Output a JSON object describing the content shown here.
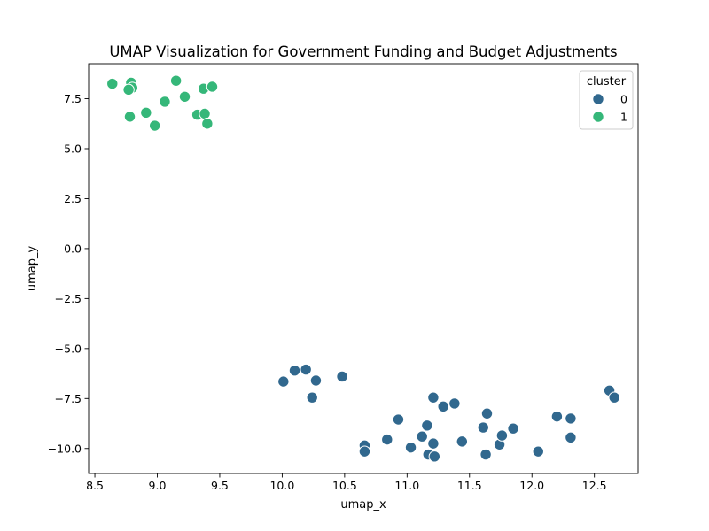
{
  "chart_data": {
    "type": "scatter",
    "title": "UMAP Visualization for Government Funding and Budget Adjustments",
    "xlabel": "umap_x",
    "ylabel": "umap_y",
    "xlim": [
      8.45,
      12.85
    ],
    "ylim": [
      -11.25,
      9.25
    ],
    "xticks": [
      8.5,
      9.0,
      9.5,
      10.0,
      10.5,
      11.0,
      11.5,
      12.0,
      12.5
    ],
    "xtick_labels": [
      "8.5",
      "9.0",
      "9.5",
      "10.0",
      "10.5",
      "11.0",
      "11.5",
      "12.0",
      "12.5"
    ],
    "yticks": [
      7.5,
      5.0,
      2.5,
      0.0,
      -2.5,
      -5.0,
      -7.5,
      -10.0
    ],
    "ytick_labels": [
      "7.5",
      "5.0",
      "2.5",
      "0.0",
      "−2.5",
      "−5.0",
      "−7.5",
      "−10.0"
    ],
    "grid": false,
    "legend": {
      "title": "cluster",
      "placement": "top-right",
      "entries": [
        {
          "label": "0",
          "color": "#31688e"
        },
        {
          "label": "1",
          "color": "#35b779"
        }
      ]
    },
    "series": [
      {
        "name": "0",
        "color": "#31688e",
        "points": [
          [
            10.01,
            -6.65
          ],
          [
            10.1,
            -6.1
          ],
          [
            10.19,
            -6.05
          ],
          [
            10.27,
            -6.6
          ],
          [
            10.24,
            -7.45
          ],
          [
            10.48,
            -6.4
          ],
          [
            10.66,
            -9.85
          ],
          [
            10.66,
            -10.15
          ],
          [
            10.84,
            -9.55
          ],
          [
            10.93,
            -8.55
          ],
          [
            11.03,
            -9.95
          ],
          [
            11.12,
            -9.4
          ],
          [
            11.16,
            -8.85
          ],
          [
            11.17,
            -10.3
          ],
          [
            11.21,
            -7.45
          ],
          [
            11.21,
            -9.75
          ],
          [
            11.22,
            -10.4
          ],
          [
            11.29,
            -7.9
          ],
          [
            11.38,
            -7.75
          ],
          [
            11.44,
            -9.65
          ],
          [
            11.61,
            -8.95
          ],
          [
            11.64,
            -8.25
          ],
          [
            11.63,
            -10.3
          ],
          [
            11.74,
            -9.8
          ],
          [
            11.76,
            -9.35
          ],
          [
            11.85,
            -9.0
          ],
          [
            12.05,
            -10.15
          ],
          [
            12.2,
            -8.4
          ],
          [
            12.31,
            -8.5
          ],
          [
            12.31,
            -9.45
          ],
          [
            12.62,
            -7.1
          ],
          [
            12.66,
            -7.45
          ]
        ]
      },
      {
        "name": "1",
        "color": "#35b779",
        "points": [
          [
            8.64,
            8.25
          ],
          [
            8.79,
            8.3
          ],
          [
            8.8,
            8.05
          ],
          [
            8.77,
            7.95
          ],
          [
            8.78,
            6.6
          ],
          [
            8.91,
            6.8
          ],
          [
            8.98,
            6.15
          ],
          [
            9.06,
            7.35
          ],
          [
            9.15,
            8.4
          ],
          [
            9.22,
            7.6
          ],
          [
            9.32,
            6.7
          ],
          [
            9.37,
            8.0
          ],
          [
            9.38,
            6.75
          ],
          [
            9.4,
            6.25
          ],
          [
            9.44,
            8.1
          ]
        ]
      }
    ]
  }
}
